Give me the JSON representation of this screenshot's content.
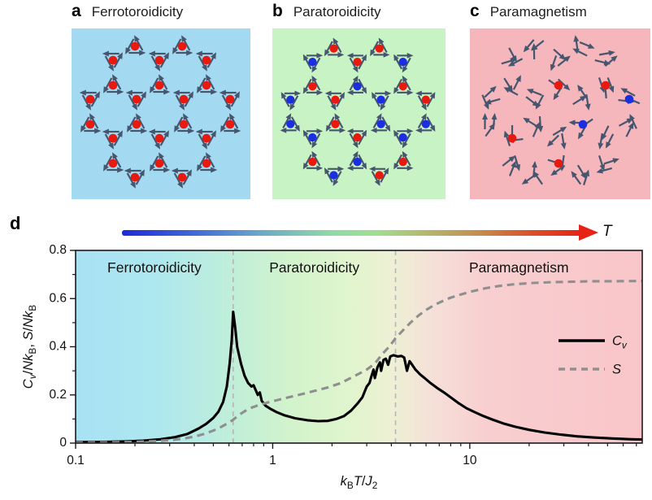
{
  "panels": [
    {
      "label": "a",
      "title": "Ferrotoroidicity",
      "bg": "#a3d9f1",
      "arrows": "vortex",
      "dot_rows": [
        [
          "R",
          "R"
        ],
        [
          "R",
          "R",
          "R"
        ],
        [
          "R",
          "R",
          "R"
        ],
        [
          "R",
          "R",
          "R",
          "R"
        ],
        [
          "R",
          "R",
          "R",
          "R"
        ],
        [
          "R",
          "R",
          "R"
        ],
        [
          "R",
          "R",
          "R"
        ],
        [
          "R",
          "R"
        ]
      ]
    },
    {
      "label": "b",
      "title": "Paratoroidicity",
      "bg": "#c8f3c4",
      "arrows": "vortex",
      "dot_rows": [
        [
          "R",
          "R"
        ],
        [
          "B",
          "R",
          "B"
        ],
        [
          "R",
          "B",
          "R"
        ],
        [
          "B",
          "R",
          "B",
          "R"
        ],
        [
          "B",
          "R",
          "B",
          "B"
        ],
        [
          "B",
          "R",
          "B"
        ],
        [
          "R",
          "B",
          "R"
        ],
        [
          "B",
          "R"
        ]
      ]
    },
    {
      "label": "c",
      "title": "Paramagnetism",
      "bg": "#f5b6bc",
      "arrows": "random",
      "dot_rows": [
        [
          null,
          null
        ],
        [
          null,
          null,
          null
        ],
        [
          null,
          "R",
          "R"
        ],
        [
          null,
          null,
          null,
          "B"
        ],
        [
          null,
          null,
          "B",
          null
        ],
        [
          "R",
          null,
          null
        ],
        [
          null,
          "R",
          null
        ],
        [
          null,
          null
        ]
      ]
    }
  ],
  "panel_d": {
    "label": "d",
    "temperature_label": "T"
  },
  "colors": {
    "red_dot": "#e8190f",
    "blue_dot": "#1b2fe0",
    "arrow": "#45566e",
    "axis": "#1a1a1a",
    "cv_line": "#000000",
    "s_line": "#8f8f8f",
    "transition_line": "#b5b5b5"
  },
  "chart_data": {
    "type": "line",
    "xscale": "log",
    "xlim": [
      0.1,
      75
    ],
    "ylim": [
      0,
      0.8
    ],
    "xticks": [
      0.1,
      1,
      10
    ],
    "xtick_labels": [
      "0.1",
      "1",
      "10"
    ],
    "yticks": [
      0,
      0.2,
      0.4,
      0.6,
      0.8
    ],
    "ytick_labels": [
      "0",
      "0.2",
      "0.4",
      "0.6",
      "0.8"
    ],
    "xlabel_rich": [
      {
        "t": "k",
        "s": "it"
      },
      {
        "t": "B",
        "s": "sub"
      },
      {
        "t": "T",
        "s": "it"
      },
      {
        "t": "/",
        "s": "n"
      },
      {
        "t": "J",
        "s": "it"
      },
      {
        "t": "2",
        "s": "sub"
      }
    ],
    "ylabel_rich": [
      {
        "t": "C",
        "s": "it"
      },
      {
        "t": "v",
        "s": "subit"
      },
      {
        "t": "/",
        "s": "n"
      },
      {
        "t": "N",
        "s": "it"
      },
      {
        "t": "k",
        "s": "it"
      },
      {
        "t": "B",
        "s": "sub"
      },
      {
        "t": ", ",
        "s": "n"
      },
      {
        "t": "S",
        "s": "it"
      },
      {
        "t": "/",
        "s": "n"
      },
      {
        "t": "N",
        "s": "it"
      },
      {
        "t": "k",
        "s": "it"
      },
      {
        "t": "B",
        "s": "sub"
      }
    ],
    "regions": [
      {
        "label": "Ferrotoroidicity"
      },
      {
        "label": "Paratoroidicity"
      },
      {
        "label": "Paramagnetism"
      }
    ],
    "transitions": [
      0.63,
      4.2
    ],
    "legend_position": "right-middle",
    "grid": false,
    "colorbar": {
      "label": "T",
      "stops": [
        {
          "offset": "0%",
          "color": "#1c2ad6"
        },
        {
          "offset": "15%",
          "color": "#3f66d8"
        },
        {
          "offset": "30%",
          "color": "#6aa8c8"
        },
        {
          "offset": "45%",
          "color": "#8fd8a8"
        },
        {
          "offset": "55%",
          "color": "#a0df92"
        },
        {
          "offset": "65%",
          "color": "#b3bc72"
        },
        {
          "offset": "78%",
          "color": "#c68b4e"
        },
        {
          "offset": "90%",
          "color": "#dd4b28"
        },
        {
          "offset": "100%",
          "color": "#e62315"
        }
      ]
    },
    "plot_bg_stops": [
      {
        "offset": "0%",
        "color": "#a8e1f4"
      },
      {
        "offset": "15%",
        "color": "#aee8ee"
      },
      {
        "offset": "27%",
        "color": "#bfeeda"
      },
      {
        "offset": "38%",
        "color": "#d2f3cc"
      },
      {
        "offset": "48%",
        "color": "#e0f5cd"
      },
      {
        "offset": "56%",
        "color": "#edf0d4"
      },
      {
        "offset": "63%",
        "color": "#f5e0d8"
      },
      {
        "offset": "72%",
        "color": "#f8cfd0"
      },
      {
        "offset": "100%",
        "color": "#f9c5c9"
      }
    ],
    "series": [
      {
        "name": "Cv",
        "name_rich": [
          {
            "t": "C",
            "s": "it"
          },
          {
            "t": "v",
            "s": "subit"
          }
        ],
        "style": "solid",
        "color": "#000000",
        "points": [
          [
            0.1,
            0.004
          ],
          [
            0.14,
            0.005
          ],
          [
            0.18,
            0.007
          ],
          [
            0.22,
            0.01
          ],
          [
            0.27,
            0.016
          ],
          [
            0.32,
            0.025
          ],
          [
            0.37,
            0.038
          ],
          [
            0.42,
            0.06
          ],
          [
            0.46,
            0.08
          ],
          [
            0.5,
            0.105
          ],
          [
            0.53,
            0.13
          ],
          [
            0.56,
            0.17
          ],
          [
            0.585,
            0.235
          ],
          [
            0.605,
            0.33
          ],
          [
            0.62,
            0.43
          ],
          [
            0.63,
            0.545
          ],
          [
            0.645,
            0.48
          ],
          [
            0.66,
            0.4
          ],
          [
            0.69,
            0.33
          ],
          [
            0.72,
            0.28
          ],
          [
            0.75,
            0.25
          ],
          [
            0.78,
            0.235
          ],
          [
            0.8,
            0.24
          ],
          [
            0.82,
            0.22
          ],
          [
            0.84,
            0.2
          ],
          [
            0.86,
            0.21
          ],
          [
            0.88,
            0.175
          ],
          [
            0.92,
            0.155
          ],
          [
            0.97,
            0.143
          ],
          [
            1.05,
            0.128
          ],
          [
            1.15,
            0.115
          ],
          [
            1.3,
            0.103
          ],
          [
            1.5,
            0.095
          ],
          [
            1.7,
            0.091
          ],
          [
            1.9,
            0.092
          ],
          [
            2.1,
            0.1
          ],
          [
            2.3,
            0.112
          ],
          [
            2.5,
            0.135
          ],
          [
            2.7,
            0.165
          ],
          [
            2.85,
            0.19
          ],
          [
            3.0,
            0.235
          ],
          [
            3.1,
            0.25
          ],
          [
            3.15,
            0.27
          ],
          [
            3.25,
            0.305
          ],
          [
            3.3,
            0.27
          ],
          [
            3.4,
            0.315
          ],
          [
            3.5,
            0.335
          ],
          [
            3.55,
            0.3
          ],
          [
            3.65,
            0.345
          ],
          [
            3.75,
            0.35
          ],
          [
            3.85,
            0.325
          ],
          [
            3.95,
            0.36
          ],
          [
            4.1,
            0.365
          ],
          [
            4.3,
            0.36
          ],
          [
            4.5,
            0.362
          ],
          [
            4.65,
            0.355
          ],
          [
            4.8,
            0.3
          ],
          [
            4.95,
            0.34
          ],
          [
            5.1,
            0.325
          ],
          [
            5.3,
            0.305
          ],
          [
            5.6,
            0.285
          ],
          [
            5.9,
            0.27
          ],
          [
            6.3,
            0.25
          ],
          [
            6.8,
            0.23
          ],
          [
            7.4,
            0.21
          ],
          [
            8.0,
            0.19
          ],
          [
            8.8,
            0.165
          ],
          [
            9.6,
            0.145
          ],
          [
            10.5,
            0.13
          ],
          [
            11.5,
            0.115
          ],
          [
            13,
            0.098
          ],
          [
            15,
            0.08
          ],
          [
            17,
            0.068
          ],
          [
            20,
            0.055
          ],
          [
            24,
            0.044
          ],
          [
            29,
            0.035
          ],
          [
            35,
            0.028
          ],
          [
            43,
            0.023
          ],
          [
            54,
            0.019
          ],
          [
            66,
            0.016
          ],
          [
            75,
            0.015
          ]
        ]
      },
      {
        "name": "S",
        "name_rich": [
          {
            "t": "S",
            "s": "it"
          }
        ],
        "style": "dashed",
        "color": "#8f8f8f",
        "points": [
          [
            0.1,
            0.002
          ],
          [
            0.15,
            0.003
          ],
          [
            0.2,
            0.005
          ],
          [
            0.25,
            0.008
          ],
          [
            0.3,
            0.012
          ],
          [
            0.35,
            0.018
          ],
          [
            0.4,
            0.027
          ],
          [
            0.45,
            0.038
          ],
          [
            0.5,
            0.052
          ],
          [
            0.55,
            0.068
          ],
          [
            0.6,
            0.085
          ],
          [
            0.63,
            0.097
          ],
          [
            0.67,
            0.115
          ],
          [
            0.72,
            0.132
          ],
          [
            0.78,
            0.147
          ],
          [
            0.85,
            0.158
          ],
          [
            0.95,
            0.169
          ],
          [
            1.05,
            0.178
          ],
          [
            1.2,
            0.19
          ],
          [
            1.4,
            0.203
          ],
          [
            1.6,
            0.215
          ],
          [
            1.9,
            0.231
          ],
          [
            2.2,
            0.248
          ],
          [
            2.6,
            0.278
          ],
          [
            3.0,
            0.305
          ],
          [
            3.3,
            0.33
          ],
          [
            3.6,
            0.37
          ],
          [
            3.9,
            0.4
          ],
          [
            4.2,
            0.435
          ],
          [
            4.6,
            0.47
          ],
          [
            5.0,
            0.5
          ],
          [
            5.5,
            0.53
          ],
          [
            6.0,
            0.553
          ],
          [
            6.6,
            0.573
          ],
          [
            7.3,
            0.59
          ],
          [
            8.0,
            0.604
          ],
          [
            9.0,
            0.617
          ],
          [
            10,
            0.628
          ],
          [
            12,
            0.643
          ],
          [
            14,
            0.652
          ],
          [
            17,
            0.66
          ],
          [
            21,
            0.665
          ],
          [
            26,
            0.668
          ],
          [
            33,
            0.67
          ],
          [
            43,
            0.672
          ],
          [
            55,
            0.672
          ],
          [
            75,
            0.673
          ]
        ]
      }
    ]
  }
}
